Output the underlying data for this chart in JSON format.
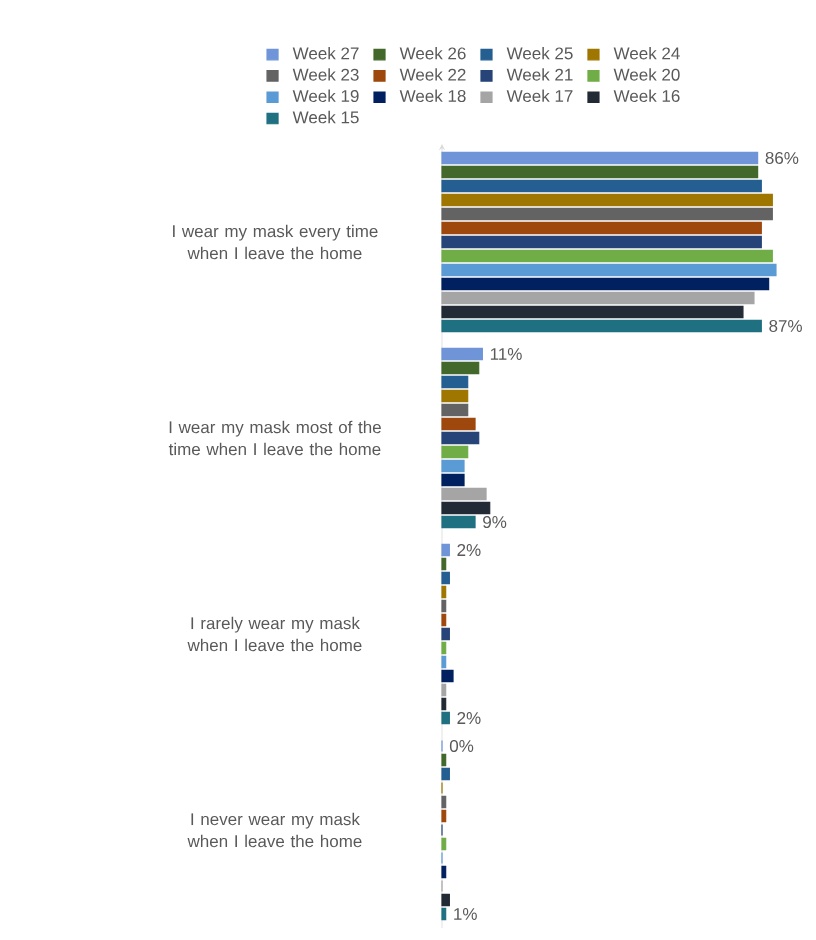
{
  "chart_data": {
    "type": "bar",
    "orientation": "horizontal",
    "categories": [
      "I wear my mask every time when I leave the home",
      "I wear my mask most of the time when I leave the home",
      "I rarely wear my mask when I leave the home",
      "I never wear my mask when I leave the home"
    ],
    "tick_labels": "y",
    "legend": "top",
    "series": [
      {
        "name": "Week 27",
        "color": "#6f95d8",
        "values": [
          86,
          11,
          2,
          0
        ],
        "value_labels": [
          "86%",
          "11%",
          "2%",
          "0%"
        ]
      },
      {
        "name": "Week 26",
        "color": "#43682b",
        "values": [
          86,
          10,
          1,
          1
        ]
      },
      {
        "name": "Week 25",
        "color": "#255e91",
        "values": [
          87,
          7,
          2,
          2
        ]
      },
      {
        "name": "Week 24",
        "color": "#9e7600",
        "values": [
          90,
          7,
          1,
          0
        ]
      },
      {
        "name": "Week 23",
        "color": "#636363",
        "values": [
          90,
          7,
          1,
          1
        ]
      },
      {
        "name": "Week 22",
        "color": "#9e480e",
        "values": [
          87,
          9,
          1,
          1
        ]
      },
      {
        "name": "Week 21",
        "color": "#264478",
        "values": [
          87,
          10,
          2,
          0
        ]
      },
      {
        "name": "Week 20",
        "color": "#70ad47",
        "values": [
          90,
          7,
          1,
          1
        ]
      },
      {
        "name": "Week 19",
        "color": "#5b9bd5",
        "values": [
          91,
          6,
          1,
          0
        ]
      },
      {
        "name": "Week 18",
        "color": "#002060",
        "values": [
          89,
          6,
          3,
          1
        ]
      },
      {
        "name": "Week 17",
        "color": "#a5a5a5",
        "values": [
          85,
          12,
          1,
          0
        ]
      },
      {
        "name": "Week 16",
        "color": "#222a35",
        "values": [
          82,
          13,
          1,
          2
        ]
      },
      {
        "name": "Week 15",
        "color": "#1f7080",
        "values": [
          87,
          9,
          2,
          1
        ],
        "value_labels": [
          "87%",
          "9%",
          "2%",
          "1%"
        ]
      }
    ]
  }
}
